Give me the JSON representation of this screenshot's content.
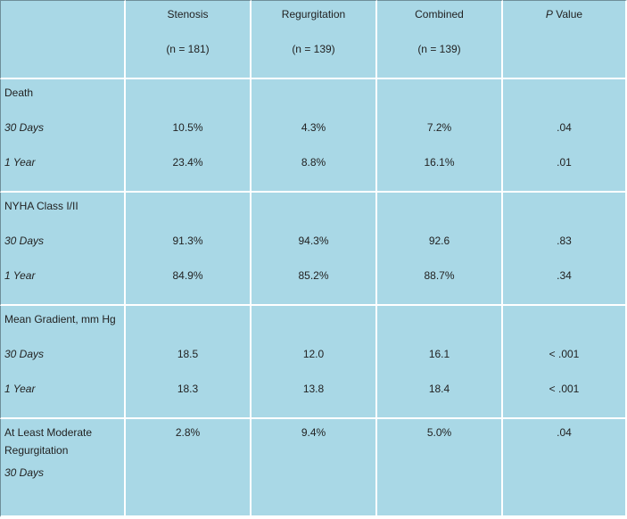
{
  "columns": [
    {
      "title": "Stenosis",
      "n": "(n = 181)"
    },
    {
      "title": "Regurgitation",
      "n": "(n = 139)"
    },
    {
      "title": "Combined",
      "n": "(n = 139)"
    },
    {
      "title_italic": "P",
      "title": " Value",
      "n": ""
    }
  ],
  "sections": [
    {
      "label": "Death",
      "rows": [
        {
          "label": "30 Days",
          "values": [
            "10.5%",
            "4.3%",
            "7.2%",
            ".04"
          ]
        },
        {
          "label": "1 Year",
          "values": [
            "23.4%",
            "8.8%",
            "16.1%",
            ".01"
          ]
        }
      ]
    },
    {
      "label": "NYHA Class I/II",
      "rows": [
        {
          "label": "30 Days",
          "values": [
            "91.3%",
            "94.3%",
            "92.6",
            ".83"
          ]
        },
        {
          "label": "1 Year",
          "values": [
            "84.9%",
            "85.2%",
            "88.7%",
            ".34"
          ]
        }
      ]
    },
    {
      "label": "Mean Gradient, mm Hg",
      "rows": [
        {
          "label": "30 Days",
          "values": [
            "18.5",
            "12.0",
            "16.1",
            "< .001"
          ]
        },
        {
          "label": "1 Year",
          "values": [
            "18.3",
            "13.8",
            "18.4",
            "< .001"
          ]
        }
      ]
    },
    {
      "label": "At Least Moderate Regurgitation",
      "rows": [
        {
          "label": "30 Days",
          "values": [
            "2.8%",
            "9.4%",
            "5.0%",
            ".04"
          ]
        }
      ]
    }
  ],
  "colors": {
    "cell_bg": "#a9d8e6",
    "grid_line": "#ffffff",
    "outer_border": "#6f8e99"
  }
}
